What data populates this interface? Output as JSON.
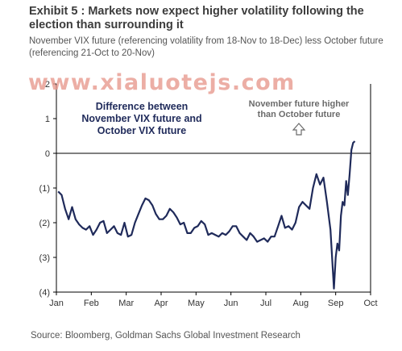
{
  "header": {
    "title": "Exhibit 5 : Markets now expect higher volatility following the election than surrounding it",
    "subtitle": "November VIX future (referencing volatility from 18-Nov to 18-Dec) less October future (referencing 21-Oct to 20-Nov)",
    "watermark": "www.xialuotejs.com",
    "source": "Source: Bloomberg, Goldman Sachs Global Investment Research"
  },
  "chart_data": {
    "type": "line",
    "title": "Exhibit 5 : Markets now expect higher volatility following the election than surrounding it",
    "subtitle": "November VIX future (referencing volatility from 18-Nov to 18-Dec) less October future (referencing 21-Oct to 20-Nov)",
    "xlabel": "",
    "ylabel": "",
    "x_ticks": [
      "Jan",
      "Feb",
      "Mar",
      "Apr",
      "May",
      "Jun",
      "Jul",
      "Aug",
      "Sep",
      "Oct"
    ],
    "y_ticks": [
      {
        "value": 2,
        "label": "2"
      },
      {
        "value": 1,
        "label": "1"
      },
      {
        "value": 0,
        "label": "0"
      },
      {
        "value": -1,
        "label": "(1)"
      },
      {
        "value": -2,
        "label": "(2)"
      },
      {
        "value": -3,
        "label": "(3)"
      },
      {
        "value": -4,
        "label": "(4)"
      }
    ],
    "ylim": [
      -4,
      2
    ],
    "xlim": [
      0,
      9
    ],
    "grid": false,
    "zero_line": true,
    "series": [
      {
        "color": "#1f2a5a",
        "x": [
          0.05,
          0.15,
          0.25,
          0.35,
          0.45,
          0.55,
          0.65,
          0.75,
          0.85,
          0.95,
          1.05,
          1.15,
          1.25,
          1.35,
          1.45,
          1.55,
          1.65,
          1.75,
          1.85,
          1.95,
          2.05,
          2.15,
          2.25,
          2.35,
          2.45,
          2.55,
          2.65,
          2.75,
          2.85,
          2.95,
          3.05,
          3.15,
          3.25,
          3.35,
          3.45,
          3.55,
          3.65,
          3.75,
          3.85,
          3.95,
          4.05,
          4.15,
          4.25,
          4.35,
          4.45,
          4.55,
          4.65,
          4.75,
          4.85,
          4.95,
          5.05,
          5.15,
          5.25,
          5.35,
          5.45,
          5.55,
          5.65,
          5.75,
          5.85,
          5.95,
          6.05,
          6.15,
          6.25,
          6.35,
          6.45,
          6.55,
          6.65,
          6.75,
          6.85,
          6.95,
          7.05,
          7.15,
          7.25,
          7.35,
          7.45,
          7.55,
          7.65,
          7.75,
          7.85,
          7.95,
          8.0,
          8.05,
          8.1,
          8.15,
          8.2,
          8.25,
          8.3,
          8.35,
          8.4,
          8.45,
          8.5,
          8.55
        ],
        "y": [
          -1.1,
          -1.2,
          -1.6,
          -1.9,
          -1.55,
          -1.9,
          -2.05,
          -2.15,
          -2.2,
          -2.1,
          -2.35,
          -2.2,
          -2.0,
          -1.95,
          -2.3,
          -2.2,
          -2.1,
          -2.3,
          -2.35,
          -2.0,
          -2.4,
          -2.35,
          -2.0,
          -1.75,
          -1.5,
          -1.3,
          -1.35,
          -1.5,
          -1.75,
          -1.9,
          -1.9,
          -1.8,
          -1.6,
          -1.7,
          -1.85,
          -2.05,
          -2.0,
          -2.3,
          -2.3,
          -2.15,
          -2.1,
          -1.95,
          -2.05,
          -2.35,
          -2.3,
          -2.35,
          -2.4,
          -2.3,
          -2.35,
          -2.25,
          -2.1,
          -2.1,
          -2.3,
          -2.4,
          -2.5,
          -2.3,
          -2.4,
          -2.55,
          -2.5,
          -2.45,
          -2.55,
          -2.4,
          -2.4,
          -2.1,
          -1.8,
          -2.15,
          -2.1,
          -2.2,
          -2.0,
          -1.55,
          -1.4,
          -1.5,
          -1.6,
          -1.0,
          -0.6,
          -0.9,
          -0.7,
          -1.4,
          -2.2,
          -3.9,
          -3.0,
          -2.6,
          -2.8,
          -1.8,
          -1.4,
          -1.5,
          -0.8,
          -1.2,
          -0.6,
          0.1,
          0.3,
          0.35
        ]
      }
    ],
    "annotations": [
      {
        "text": "Difference between November VIX future and October VIX future"
      },
      {
        "text": "November future higher than October future"
      }
    ]
  },
  "annotations": {
    "box_lines": [
      "Difference between",
      "November VIX future and",
      "October VIX future"
    ],
    "right_lines": [
      "November future higher",
      "than October future"
    ]
  }
}
